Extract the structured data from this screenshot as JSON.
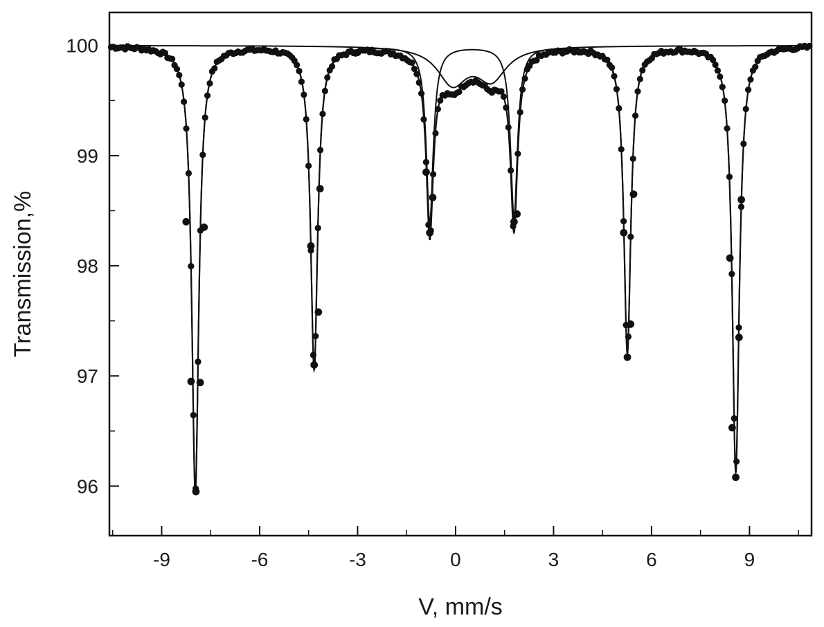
{
  "chart_data": {
    "type": "line",
    "title": "",
    "xlabel": "V, mm/s",
    "ylabel": "Transmission,%",
    "xlim": [
      -10.6,
      10.9
    ],
    "ylim": [
      95.55,
      100.3
    ],
    "x_ticks": [
      -9,
      -6,
      -3,
      0,
      3,
      6,
      9
    ],
    "y_ticks": [
      96,
      97,
      98,
      99,
      100
    ],
    "grid": false,
    "legend": "none",
    "colors": {
      "line": "#111111",
      "points": "#111111",
      "axis": "#111111"
    },
    "baseline": 100,
    "series": [
      {
        "kind": "sextet-fit",
        "center": 0.3,
        "line_positions": [
          -7.97,
          -4.33,
          -0.79,
          1.79,
          5.26,
          8.58
        ],
        "line_depths": [
          4.05,
          2.93,
          1.6,
          1.55,
          2.78,
          3.87
        ],
        "hwhm": 0.13
      },
      {
        "kind": "doublet-fit",
        "line_positions": [
          -0.1,
          1.1
        ],
        "line_depths": [
          0.33,
          0.29
        ],
        "hwhm": 0.55
      }
    ],
    "sextet_markers": [
      {
        "x": -7.95,
        "y": 95.95
      },
      {
        "x": -8.1,
        "y": 96.95
      },
      {
        "x": -7.82,
        "y": 96.94
      },
      {
        "x": -8.25,
        "y": 98.4
      },
      {
        "x": -7.7,
        "y": 98.35
      },
      {
        "x": -4.33,
        "y": 97.1
      },
      {
        "x": -4.43,
        "y": 98.18
      },
      {
        "x": -4.2,
        "y": 97.58
      },
      {
        "x": -4.15,
        "y": 98.7
      },
      {
        "x": -0.79,
        "y": 98.3
      },
      {
        "x": -0.9,
        "y": 98.85
      },
      {
        "x": -0.7,
        "y": 98.62
      },
      {
        "x": 1.79,
        "y": 98.4
      },
      {
        "x": 1.88,
        "y": 98.47
      },
      {
        "x": 5.26,
        "y": 97.17
      },
      {
        "x": 5.36,
        "y": 97.47
      },
      {
        "x": 5.15,
        "y": 98.3
      },
      {
        "x": 5.45,
        "y": 98.65
      },
      {
        "x": 8.58,
        "y": 96.08
      },
      {
        "x": 8.47,
        "y": 96.53
      },
      {
        "x": 8.68,
        "y": 97.35
      },
      {
        "x": 8.4,
        "y": 98.07
      },
      {
        "x": 8.75,
        "y": 98.6
      }
    ]
  }
}
